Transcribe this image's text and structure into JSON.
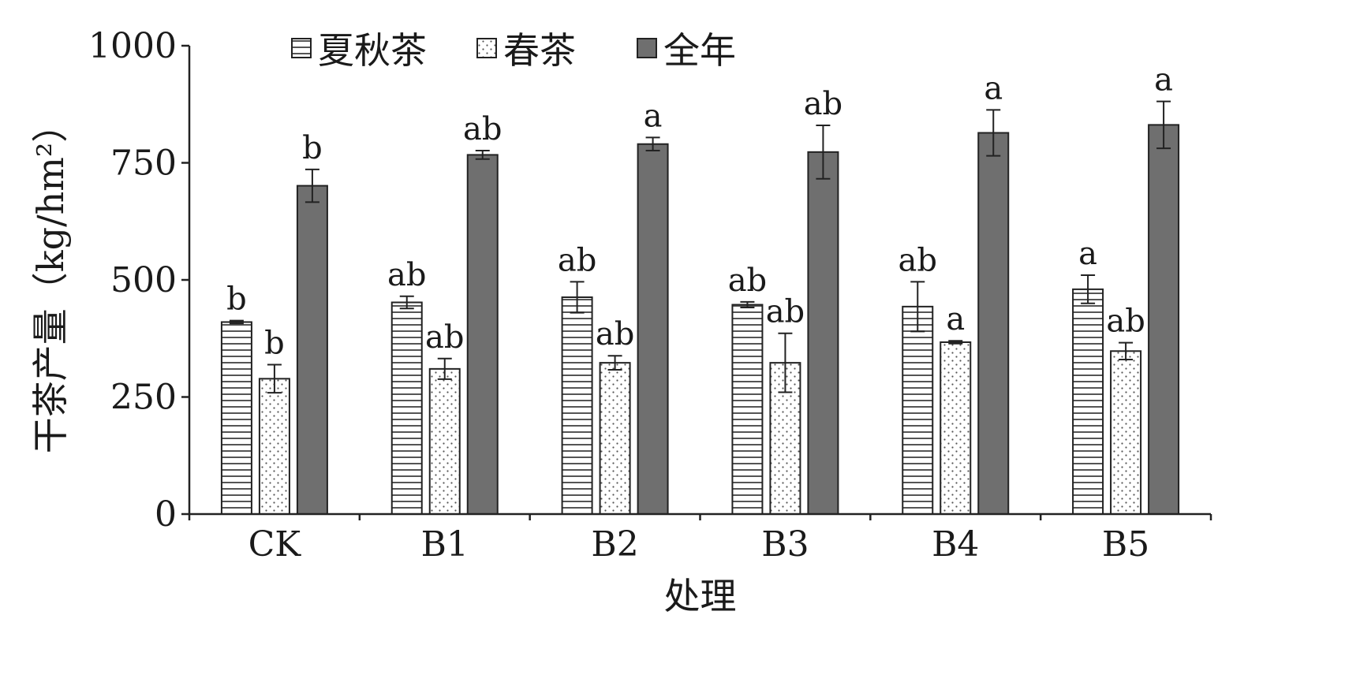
{
  "chart_data": {
    "type": "bar",
    "xlabel": "处理",
    "ylabel": "干茶产量（kg/hm²）",
    "ylim": [
      0,
      1000
    ],
    "yticks": [
      0,
      250,
      500,
      750,
      1000
    ],
    "categories": [
      "CK",
      "B1",
      "B2",
      "B3",
      "B4",
      "B5"
    ],
    "grid": false,
    "legend_position": "top",
    "series": [
      {
        "name": "夏秋茶",
        "pattern": "horizontal-lines",
        "color": "#ffffff",
        "values": [
          410,
          452,
          463,
          447,
          443,
          480
        ],
        "errors": [
          3,
          13,
          33,
          6,
          53,
          30
        ],
        "labels": [
          "b",
          "ab",
          "ab",
          "ab",
          "ab",
          "a"
        ]
      },
      {
        "name": "春茶",
        "pattern": "dots",
        "color": "#ffffff",
        "values": [
          289,
          310,
          323,
          323,
          367,
          348
        ],
        "errors": [
          30,
          22,
          15,
          63,
          3,
          18
        ],
        "labels": [
          "b",
          "ab",
          "ab",
          "ab",
          "a",
          "ab"
        ]
      },
      {
        "name": "全年",
        "pattern": "solid",
        "color": "#6f6f6f",
        "values": [
          701,
          767,
          790,
          773,
          814,
          831
        ],
        "errors": [
          35,
          9,
          14,
          57,
          49,
          50
        ],
        "labels": [
          "b",
          "ab",
          "a",
          "ab",
          "a",
          "a"
        ]
      }
    ]
  }
}
